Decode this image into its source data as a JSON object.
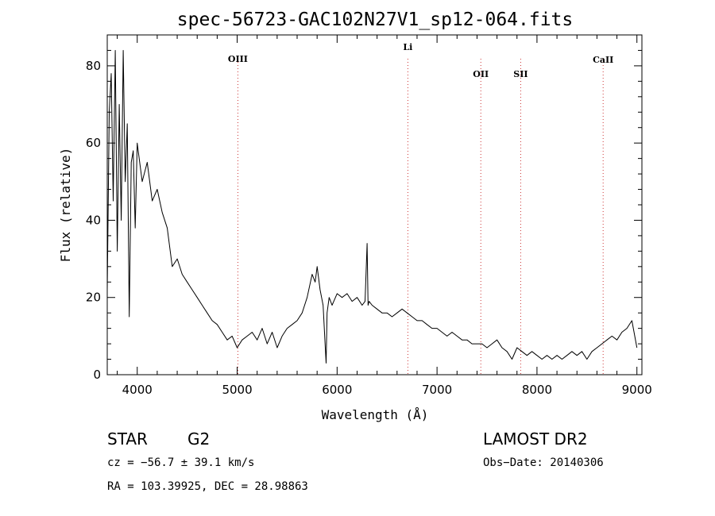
{
  "chart_data": {
    "type": "line",
    "title": "spec-56723-GAC102N27V1_sp12-064.fits",
    "xlabel": "Wavelength (Å)",
    "ylabel": "Flux (relative)",
    "xlim": [
      3700,
      9050
    ],
    "ylim": [
      0,
      88
    ],
    "xticks": [
      4000,
      5000,
      6000,
      7000,
      8000,
      9000
    ],
    "yticks": [
      0,
      20,
      40,
      60,
      80
    ],
    "grid": false,
    "line_color": "#000000",
    "spectral_lines": [
      {
        "label": "OIII",
        "x": 5007
      },
      {
        "label": "Li",
        "x": 6708
      },
      {
        "label": "OII",
        "x": 7438
      },
      {
        "label": "SII",
        "x": 7837
      },
      {
        "label": "CaII",
        "x": 8662
      }
    ],
    "line_marker_color": "#cc3333",
    "series": [
      {
        "x": [
          3700,
          3720,
          3740,
          3760,
          3780,
          3800,
          3820,
          3840,
          3860,
          3880,
          3900,
          3920,
          3940,
          3960,
          3980,
          4000,
          4050,
          4100,
          4150,
          4200,
          4250,
          4300,
          4350,
          4400,
          4450,
          4500,
          4550,
          4600,
          4650,
          4700,
          4750,
          4800,
          4850,
          4900,
          4950,
          5000,
          5050,
          5100,
          5150,
          5200,
          5250,
          5300,
          5350,
          5400,
          5450,
          5500,
          5550,
          5600,
          5650,
          5700,
          5750,
          5780,
          5800,
          5830,
          5860,
          5880,
          5890,
          5900,
          5920,
          5950,
          6000,
          6050,
          6100,
          6150,
          6200,
          6250,
          6280,
          6300,
          6310,
          6320,
          6350,
          6400,
          6450,
          6500,
          6550,
          6600,
          6650,
          6700,
          6750,
          6800,
          6850,
          6900,
          6950,
          7000,
          7050,
          7100,
          7150,
          7200,
          7250,
          7300,
          7350,
          7400,
          7450,
          7500,
          7550,
          7600,
          7650,
          7700,
          7750,
          7800,
          7850,
          7900,
          7950,
          8000,
          8050,
          8100,
          8150,
          8200,
          8250,
          8300,
          8350,
          8400,
          8450,
          8500,
          8550,
          8600,
          8650,
          8700,
          8750,
          8800,
          8850,
          8900,
          8950,
          9000
        ],
        "y": [
          22,
          68,
          78,
          45,
          84,
          32,
          70,
          40,
          84,
          50,
          65,
          15,
          55,
          58,
          38,
          60,
          50,
          55,
          45,
          48,
          42,
          38,
          28,
          30,
          26,
          24,
          22,
          20,
          18,
          16,
          14,
          13,
          11,
          9,
          10,
          7,
          9,
          10,
          11,
          9,
          12,
          8,
          11,
          7,
          10,
          12,
          13,
          14,
          16,
          20,
          26,
          24,
          28,
          22,
          18,
          8,
          3,
          16,
          20,
          18,
          21,
          20,
          21,
          19,
          20,
          18,
          19,
          34,
          18,
          19,
          18,
          17,
          16,
          16,
          15,
          16,
          17,
          16,
          15,
          14,
          14,
          13,
          12,
          12,
          11,
          10,
          11,
          10,
          9,
          9,
          8,
          8,
          8,
          7,
          8,
          9,
          7,
          6,
          4,
          7,
          6,
          5,
          6,
          5,
          4,
          5,
          4,
          5,
          4,
          5,
          6,
          5,
          6,
          4,
          6,
          7,
          8,
          9,
          10,
          9,
          11,
          12,
          14,
          7
        ]
      }
    ]
  },
  "info": {
    "object_class": "STAR",
    "subclass": "G2",
    "survey": "LAMOST DR2",
    "cz": "cz = −56.7 ± 39.1 km/s",
    "obs_date": "Obs−Date: 20140306",
    "coords": "RA = 103.39925, DEC =  28.98863"
  }
}
